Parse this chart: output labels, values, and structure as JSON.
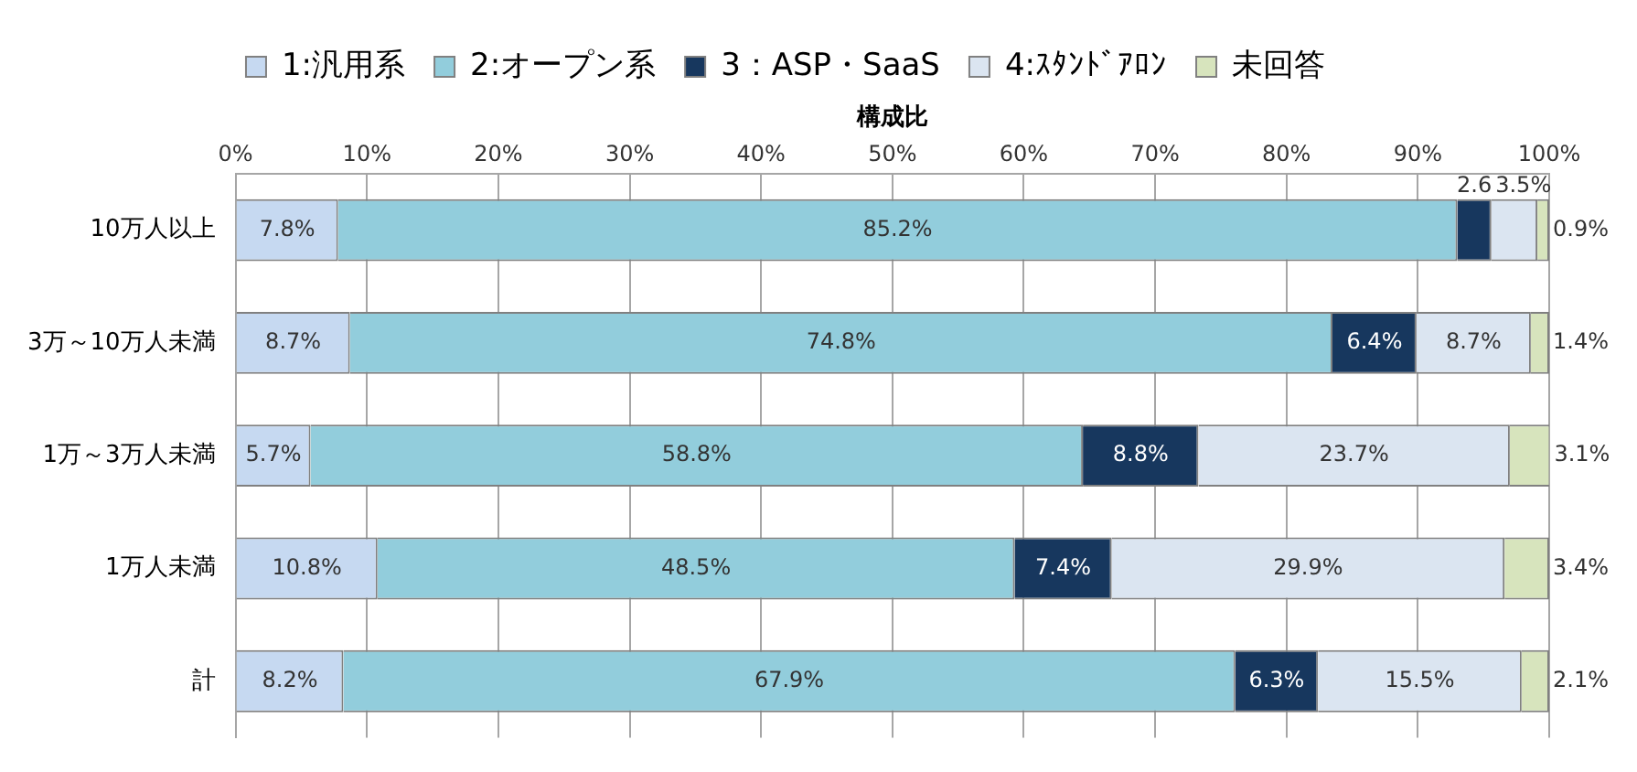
{
  "chart_data": {
    "type": "bar",
    "orientation": "horizontal",
    "stacked": true,
    "xlabel": "構成比",
    "legend": "top",
    "grid": "x",
    "categories": [
      "10万人以上",
      "3万～10万人未満",
      "1万～3万人未満",
      "1万人未満",
      "計"
    ],
    "xlim": [
      0,
      100
    ],
    "xticks": [
      {
        "value": 0,
        "label": "0%"
      },
      {
        "value": 10,
        "label": "10%"
      },
      {
        "value": 20,
        "label": "20%"
      },
      {
        "value": 30,
        "label": "30%"
      },
      {
        "value": 40,
        "label": "40%"
      },
      {
        "value": 50,
        "label": "50%"
      },
      {
        "value": 60,
        "label": "60%"
      },
      {
        "value": 70,
        "label": "70%"
      },
      {
        "value": 80,
        "label": "80%"
      },
      {
        "value": 90,
        "label": "90%"
      },
      {
        "value": 100,
        "label": "100%"
      }
    ],
    "series": [
      {
        "name": "1:汎用系",
        "color": "#c6d9f1",
        "values": [
          7.8,
          8.7,
          5.7,
          10.8,
          8.2
        ],
        "value_labels": [
          "7.8%",
          "8.7%",
          "5.7%",
          "10.8%",
          "8.2%"
        ]
      },
      {
        "name": "2:オープン系",
        "color": "#92cddc",
        "values": [
          85.2,
          74.8,
          58.8,
          48.5,
          67.9
        ],
        "value_labels": [
          "85.2%",
          "74.8%",
          "58.8%",
          "48.5%",
          "67.9%"
        ]
      },
      {
        "name": "3：ASP・SaaS",
        "color": "#17375e",
        "values": [
          2.6,
          6.4,
          8.8,
          7.4,
          6.3
        ],
        "value_labels": [
          "2.6",
          "6.4%",
          "8.8%",
          "7.4%",
          "6.3%"
        ]
      },
      {
        "name": "4:ｽﾀﾝﾄﾞｱﾛﾝ",
        "color": "#dbe5f1",
        "values": [
          3.5,
          8.7,
          23.7,
          29.9,
          15.5
        ],
        "value_labels": [
          "3.5%",
          "8.7%",
          "23.7%",
          "29.9%",
          "15.5%"
        ]
      },
      {
        "name": "未回答",
        "color": "#d7e4bd",
        "values": [
          0.9,
          1.4,
          3.1,
          3.4,
          2.1
        ],
        "value_labels": [
          "0.9%",
          "1.4%",
          "3.1%",
          "3.4%",
          "2.1%"
        ]
      }
    ]
  }
}
